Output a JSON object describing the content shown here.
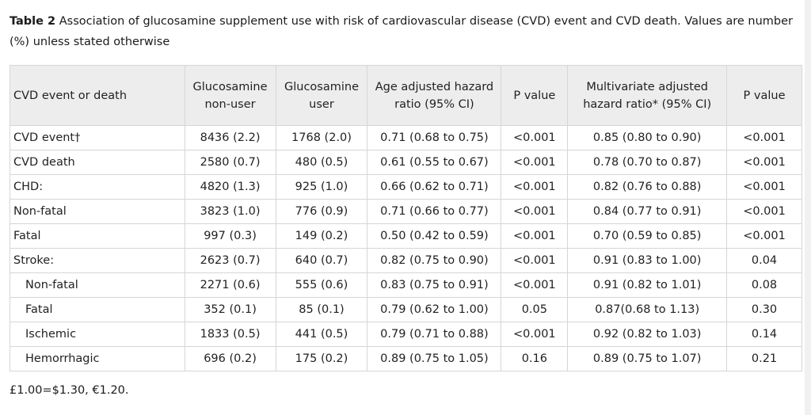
{
  "caption": {
    "label": "Table 2",
    "text": "Association of glucosamine supplement use with risk of cardiovascular disease (CVD) event and CVD death. Values are number (%) unless stated otherwise"
  },
  "table": {
    "headers": [
      "CVD event or death",
      "Glucosamine non-user",
      "Glucosamine user",
      "Age adjusted hazard ratio (95% CI)",
      "P value",
      "Multivariate adjusted hazard ratio* (95% CI)",
      "P value"
    ],
    "rows": [
      [
        "CVD event†",
        "8436 (2.2)",
        "1768 (2.0)",
        "0.71 (0.68 to 0.75)",
        "<0.001",
        "0.85 (0.80 to 0.90)",
        "<0.001"
      ],
      [
        "CVD death",
        "2580 (0.7)",
        "480 (0.5)",
        "0.61 (0.55 to 0.67)",
        "<0.001",
        "0.78 (0.70 to 0.87)",
        "<0.001"
      ],
      [
        "CHD:",
        "4820 (1.3)",
        "925 (1.0)",
        "0.66 (0.62 to 0.71)",
        "<0.001",
        "0.82 (0.76 to 0.88)",
        "<0.001"
      ],
      [
        "Non-fatal",
        "3823 (1.0)",
        "776 (0.9)",
        "0.71 (0.66 to 0.77)",
        "<0.001",
        "0.84 (0.77 to 0.91)",
        "<0.001"
      ],
      [
        "Fatal",
        "997 (0.3)",
        "149 (0.2)",
        "0.50 (0.42 to 0.59)",
        "<0.001",
        "0.70 (0.59 to 0.85)",
        "<0.001"
      ],
      [
        "Stroke:",
        "2623 (0.7)",
        "640 (0.7)",
        "0.82 (0.75 to 0.90)",
        "<0.001",
        "0.91 (0.83 to 1.00)",
        "0.04"
      ],
      [
        "Non-fatal",
        "2271 (0.6)",
        "555 (0.6)",
        "0.83 (0.75 to 0.91)",
        "<0.001",
        "0.91 (0.82 to 1.01)",
        "0.08"
      ],
      [
        "Fatal",
        "352 (0.1)",
        "85 (0.1)",
        "0.79 (0.62 to 1.00)",
        "0.05",
        "0.87(0.68 to 1.13)",
        "0.30"
      ],
      [
        "Ischemic",
        "1833 (0.5)",
        "441 (0.5)",
        "0.79 (0.71 to 0.88)",
        "<0.001",
        "0.92 (0.82 to 1.03)",
        "0.14"
      ],
      [
        "Hemorrhagic",
        "696 (0.2)",
        "175 (0.2)",
        "0.89 (0.75 to 1.05)",
        "0.16",
        "0.89 (0.75 to 1.07)",
        "0.21"
      ]
    ],
    "indented_rows": [
      6,
      7,
      8,
      9
    ]
  },
  "footnote": "£1.00=$1.30, €1.20."
}
